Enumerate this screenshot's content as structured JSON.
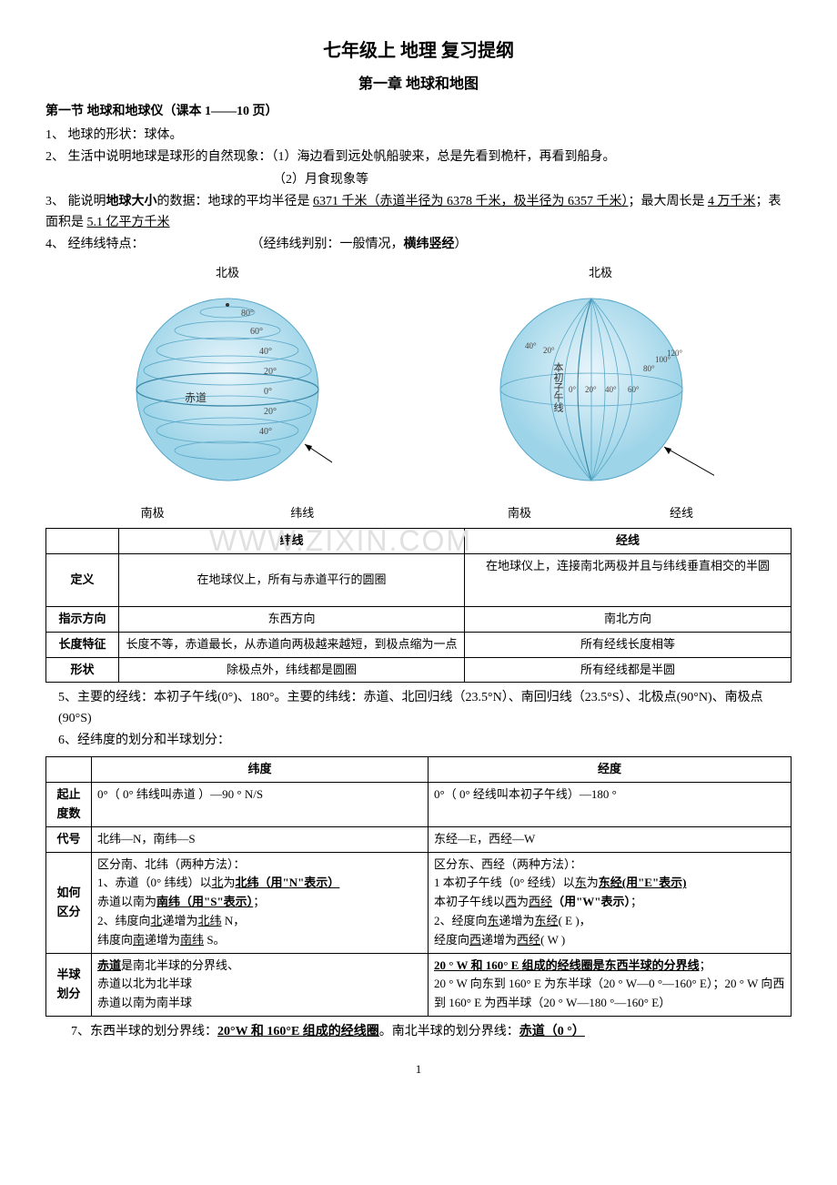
{
  "title_main": "七年级上 地理 复习提纲",
  "title_chapter": "第一章    地球和地图",
  "section1_header": "第一节 地球和地球仪（课本 1——10 页）",
  "p1": "1、 地球的形状：球体。",
  "p2": "2、 生活中说明地球是球形的自然现象：（1）海边看到远处帆船驶来，总是先看到桅杆，再看到船身。",
  "p2b": "（2）月食现象等",
  "p3_pre": "3、 能说明",
  "p3_bold": "地球大小",
  "p3_mid": "的数据：地球的平均半径是 ",
  "p3_u1": "6371 千米（赤道半径为 6378 千米，极半径为 6357 千米）",
  "p3_mid2": "；最大周长是 ",
  "p3_u2": "4 万千米",
  "p3_mid3": "；表面积是 ",
  "p3_u3": "5.1 亿平方千米",
  "p4_pre": "4、 经纬线特点：",
  "p4_mid": "（经纬线判别：一般情况，",
  "p4_bold": "横纬竖经",
  "p4_end": "）",
  "globe1": {
    "top_label": "北极",
    "bottom_label_left": "南极",
    "bottom_label_right": "纬线",
    "lats": [
      "80°",
      "60°",
      "40°",
      "20°",
      "0°",
      "20°",
      "40°"
    ],
    "equator_label": "赤道",
    "sphere_color": "#b8dff0",
    "line_color": "#6bb8d8"
  },
  "globe2": {
    "top_label": "北极",
    "bottom_label_left": "南极",
    "bottom_label_right": "经线",
    "meridian_label": "本初子午线",
    "lons": [
      "40°",
      "20°",
      "0°",
      "20°",
      "40°",
      "60°",
      "80°",
      "100°",
      "120°"
    ],
    "sphere_color": "#b8dff0",
    "line_color": "#6bb8d8"
  },
  "table1": {
    "headers": [
      "",
      "纬线",
      "经线"
    ],
    "rows": [
      {
        "h": "定义",
        "c1": "在地球仪上，所有与赤道平行的圆圈",
        "c2": "在地球仪上，连接南北两极并且与纬线垂直相交的半圆"
      },
      {
        "h": "指示方向",
        "c1": "东西方向",
        "c2": "南北方向"
      },
      {
        "h": "长度特征",
        "c1": "长度不等，赤道最长，从赤道向两极越来越短，到极点缩为一点",
        "c2": "所有经线长度相等"
      },
      {
        "h": "形状",
        "c1": "除极点外，纬线都是圆圈",
        "c2": "所有经线都是半圆"
      }
    ]
  },
  "p5": "5、主要的经线：本初子午线(0°)、180°。主要的纬线：赤道、北回归线（23.5°N）、南回归线（23.5°S）、北极点(90°N)、南极点(90°S)",
  "p6": "6、经纬度的划分和半球划分：",
  "table2": {
    "headers": [
      "",
      "纬度",
      "经度"
    ],
    "rows": [
      {
        "h": "起止度数",
        "c1": "0°（ 0° 纬线叫赤道 ）—90 ° N/S",
        "c2": "0°（ 0° 经线叫本初子午线）—180 °"
      },
      {
        "h": "代号",
        "c1": "北纬—N，南纬—S",
        "c2": "东经—E，西经—W"
      },
      {
        "h": "如何区分",
        "c1_lines": [
          "区分南、北纬（两种方法）：",
          {
            "pre": "1、赤道（0° 纬线）以",
            "u1": "北",
            "mid": "为",
            "bu1": "北纬（用\"N\"表示）",
            "post": ""
          },
          {
            "pre": "赤道以南为",
            "bu1": "南纬（用\"S\"表示）",
            "post": "；"
          },
          {
            "pre": "2、纬度向",
            "u1": "北",
            "mid": "递增为",
            "u2": "北纬",
            "post": " N，"
          },
          {
            "pre": "纬度向",
            "u1": "南",
            "mid": "递增为",
            "u2": "南纬",
            "post": " S。"
          }
        ],
        "c2_lines": [
          "区分东、西经（两种方法）：",
          {
            "pre": "1 本初子午线（0° 经线）以",
            "u1": "东",
            "mid": "为",
            "bu1": "东经(用\"E\"表示)",
            "post": ""
          },
          {
            "pre": "本初子午线以",
            "u1": "西",
            "mid": "为",
            "u2": "西经",
            "bold_post": "（用\"W\"表示）",
            "post": "；"
          },
          {
            "pre": "2、经度向",
            "u1": "东",
            "mid": "递增为",
            "u2": "东经",
            "post": "( E )，"
          },
          {
            "pre": "经度向",
            "u1": "西",
            "mid": "递增为",
            "u2": "西经",
            "post": "( W )"
          }
        ]
      },
      {
        "h": "半球划分",
        "c1_lines": [
          {
            "pre": "",
            "bu1": "赤道",
            "post": "是南北半球的分界线、"
          },
          "赤道以北为北半球",
          "赤道以南为南半球"
        ],
        "c2_lines": [
          {
            "pre": "",
            "bu1": "20 ° W 和 160° E 组成的经线圈是东西半球的分界线",
            "post": "；"
          },
          "20 ° W 向东到 160° E 为东半球（20 ° W—0 °—160° E）；20 ° W 向西到 160° E 为西半球（20 ° W—180 °—160° E）"
        ]
      }
    ]
  },
  "p7_pre": "7、东西半球的划分界线：",
  "p7_u1": "20°W 和 160°E 组成的经线圈",
  "p7_mid": "。南北半球的划分界线：",
  "p7_u2": "赤道（0 °）",
  "watermark_text": "WWW.ZIXIN.COM",
  "page_number": "1"
}
